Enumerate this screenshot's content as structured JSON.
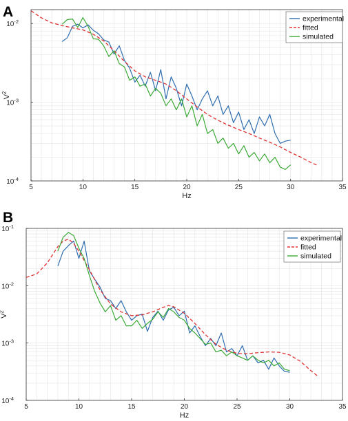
{
  "colors": {
    "experimental": "#2e6db0",
    "fitted": "#e03131",
    "simulated": "#3aa935"
  },
  "chart_data": [
    {
      "type": "line",
      "panel_label": "A",
      "xlabel": "Hz",
      "ylabel_base": "V",
      "ylabel_exp": "2",
      "xlim": [
        5,
        35
      ],
      "ylim": [
        0.0001,
        0.015
      ],
      "yscale": "log",
      "xticks": [
        5,
        10,
        15,
        20,
        25,
        30,
        35
      ],
      "yticks": [
        {
          "value": 0.01,
          "base": "10",
          "exp": "-2"
        },
        {
          "value": 0.001,
          "base": "10",
          "exp": "-3"
        },
        {
          "value": 0.0001,
          "base": "10",
          "exp": "-4"
        }
      ],
      "grid": true,
      "legend_position": "top-right",
      "series": [
        {
          "name": "experimental",
          "style": "solid",
          "color": "#2e6db0",
          "x": [
            8,
            8.5,
            9,
            9.5,
            10,
            10.5,
            11,
            11.5,
            12,
            12.5,
            13,
            13.5,
            14,
            14.5,
            15,
            15.5,
            16,
            16.5,
            17,
            17.5,
            18,
            18.5,
            19,
            19.5,
            20,
            20.5,
            21,
            21.5,
            22,
            22.5,
            23,
            23.5,
            24,
            24.5,
            25,
            25.5,
            26,
            26.5,
            27,
            27.5,
            28,
            28.5,
            29,
            29.5,
            30
          ],
          "y": [
            0.0059,
            0.0066,
            0.0092,
            0.0098,
            0.0088,
            0.0096,
            0.0082,
            0.0074,
            0.0062,
            0.0058,
            0.0041,
            0.0052,
            0.0034,
            0.0027,
            0.0018,
            0.0022,
            0.0016,
            0.0024,
            0.0014,
            0.0026,
            0.0011,
            0.0021,
            0.0015,
            0.0009,
            0.0017,
            0.0012,
            0.0008,
            0.0011,
            0.0014,
            0.0009,
            0.0012,
            0.0007,
            0.0009,
            0.00055,
            0.00075,
            0.00045,
            0.0006,
            0.0004,
            0.00065,
            0.0005,
            0.0007,
            0.0004,
            0.0003,
            0.00032,
            0.00033
          ]
        },
        {
          "name": "fitted",
          "style": "dashed",
          "color": "#e03131",
          "x": [
            5,
            6,
            7,
            8,
            9,
            10,
            11,
            12,
            13,
            14,
            15,
            16,
            17,
            18,
            19,
            20,
            21,
            22,
            23,
            24,
            25,
            26,
            27,
            28,
            29,
            30,
            31,
            32,
            32.6
          ],
          "y": [
            0.0145,
            0.0118,
            0.0102,
            0.0094,
            0.0088,
            0.0083,
            0.0073,
            0.006,
            0.0045,
            0.0033,
            0.0025,
            0.0021,
            0.0019,
            0.0017,
            0.0014,
            0.0011,
            0.00087,
            0.0007,
            0.00059,
            0.00051,
            0.00045,
            0.0004,
            0.00035,
            0.00031,
            0.00027,
            0.00023,
            0.0002,
            0.00017,
            0.000158
          ]
        },
        {
          "name": "simulated",
          "style": "solid",
          "color": "#3aa935",
          "x": [
            8,
            8.5,
            9,
            9.5,
            10,
            10.5,
            11,
            11.5,
            12,
            12.5,
            13,
            13.5,
            14,
            14.5,
            15,
            15.5,
            16,
            16.5,
            17,
            17.5,
            18,
            18.5,
            19,
            19.5,
            20,
            20.5,
            21,
            21.5,
            22,
            22.5,
            23,
            23.5,
            24,
            24.5,
            25,
            25.5,
            26,
            26.5,
            27,
            27.5,
            28,
            28.5,
            29,
            29.5,
            30
          ],
          "y": [
            0.0098,
            0.0112,
            0.0114,
            0.0089,
            0.0119,
            0.0092,
            0.0064,
            0.0063,
            0.0052,
            0.0038,
            0.0045,
            0.0031,
            0.0028,
            0.0019,
            0.0021,
            0.0016,
            0.0017,
            0.0012,
            0.0015,
            0.0013,
            0.0009,
            0.0011,
            0.0008,
            0.0011,
            0.00065,
            0.0009,
            0.0005,
            0.0007,
            0.0004,
            0.00045,
            0.0003,
            0.00035,
            0.00026,
            0.0003,
            0.00022,
            0.00028,
            0.0002,
            0.00023,
            0.00018,
            0.00022,
            0.00017,
            0.0002,
            0.00015,
            0.00014,
            0.00016
          ]
        }
      ]
    },
    {
      "type": "line",
      "panel_label": "B",
      "xlabel": "Hz",
      "ylabel_base": "V",
      "ylabel_exp": "2",
      "xlim": [
        5,
        35
      ],
      "ylim": [
        0.0001,
        0.1
      ],
      "yscale": "log",
      "xticks": [
        5,
        10,
        15,
        20,
        25,
        30,
        35
      ],
      "yticks": [
        {
          "value": 0.1,
          "base": "10",
          "exp": "-1"
        },
        {
          "value": 0.01,
          "base": "10",
          "exp": "-2"
        },
        {
          "value": 0.001,
          "base": "10",
          "exp": "-3"
        },
        {
          "value": 0.0001,
          "base": "10",
          "exp": "-4"
        }
      ],
      "grid": true,
      "legend_position": "top-right",
      "series": [
        {
          "name": "experimental",
          "style": "solid",
          "color": "#2e6db0",
          "x": [
            8,
            8.5,
            9,
            9.5,
            10,
            10.5,
            11,
            11.5,
            12,
            12.5,
            13,
            13.5,
            14,
            14.5,
            15,
            15.5,
            16,
            16.5,
            17,
            17.5,
            18,
            18.5,
            19,
            19.5,
            20,
            20.5,
            21,
            21.5,
            22,
            22.5,
            23,
            23.5,
            24,
            24.5,
            25,
            25.5,
            26,
            26.5,
            27,
            27.5,
            28,
            28.5,
            29,
            29.5,
            30
          ],
          "y": [
            0.022,
            0.04,
            0.05,
            0.06,
            0.03,
            0.06,
            0.018,
            0.013,
            0.0095,
            0.006,
            0.0055,
            0.004,
            0.0055,
            0.0035,
            0.0025,
            0.003,
            0.0032,
            0.0016,
            0.0028,
            0.0036,
            0.0025,
            0.0038,
            0.0042,
            0.003,
            0.0036,
            0.0015,
            0.002,
            0.0013,
            0.0009,
            0.0012,
            0.0009,
            0.0015,
            0.0007,
            0.0008,
            0.0006,
            0.0009,
            0.0005,
            0.0006,
            0.00045,
            0.0005,
            0.00035,
            0.00055,
            0.0004,
            0.00032,
            0.00031
          ]
        },
        {
          "name": "fitted",
          "style": "dashed",
          "color": "#e03131",
          "x": [
            5,
            6,
            7,
            8,
            8.5,
            9,
            9.5,
            10,
            11,
            12,
            13,
            14,
            15,
            16,
            17,
            18,
            18.5,
            19,
            20,
            21,
            22,
            23,
            24,
            25,
            26,
            27,
            28,
            29,
            30,
            31,
            32,
            32.7
          ],
          "y": [
            0.014,
            0.016,
            0.025,
            0.048,
            0.06,
            0.065,
            0.055,
            0.04,
            0.019,
            0.0085,
            0.0048,
            0.0035,
            0.003,
            0.0031,
            0.0035,
            0.0042,
            0.0045,
            0.0043,
            0.0033,
            0.0022,
            0.0014,
            0.00095,
            0.00075,
            0.00066,
            0.00065,
            0.00068,
            0.0007,
            0.00069,
            0.00062,
            0.00048,
            0.00033,
            0.00026
          ]
        },
        {
          "name": "simulated",
          "style": "solid",
          "color": "#3aa935",
          "x": [
            8,
            8.5,
            9,
            9.5,
            10,
            10.5,
            11,
            11.5,
            12,
            12.5,
            13,
            13.5,
            14,
            14.5,
            15,
            15.5,
            16,
            16.5,
            17,
            17.5,
            18,
            18.5,
            19,
            19.5,
            20,
            20.5,
            21,
            21.5,
            22,
            22.5,
            23,
            23.5,
            24,
            24.5,
            25,
            25.5,
            26,
            26.5,
            27,
            27.5,
            28,
            28.5,
            29,
            29.5,
            30
          ],
          "y": [
            0.04,
            0.07,
            0.085,
            0.075,
            0.045,
            0.03,
            0.015,
            0.008,
            0.005,
            0.0035,
            0.0045,
            0.0025,
            0.003,
            0.002,
            0.002,
            0.0025,
            0.0018,
            0.0022,
            0.0026,
            0.0035,
            0.0028,
            0.004,
            0.0035,
            0.0028,
            0.0025,
            0.0018,
            0.0015,
            0.0012,
            0.00095,
            0.001,
            0.0007,
            0.00075,
            0.0006,
            0.0007,
            0.0006,
            0.00055,
            0.0005,
            0.0006,
            0.0005,
            0.00045,
            0.0005,
            0.0004,
            0.00045,
            0.00035,
            0.00033
          ]
        }
      ]
    }
  ]
}
